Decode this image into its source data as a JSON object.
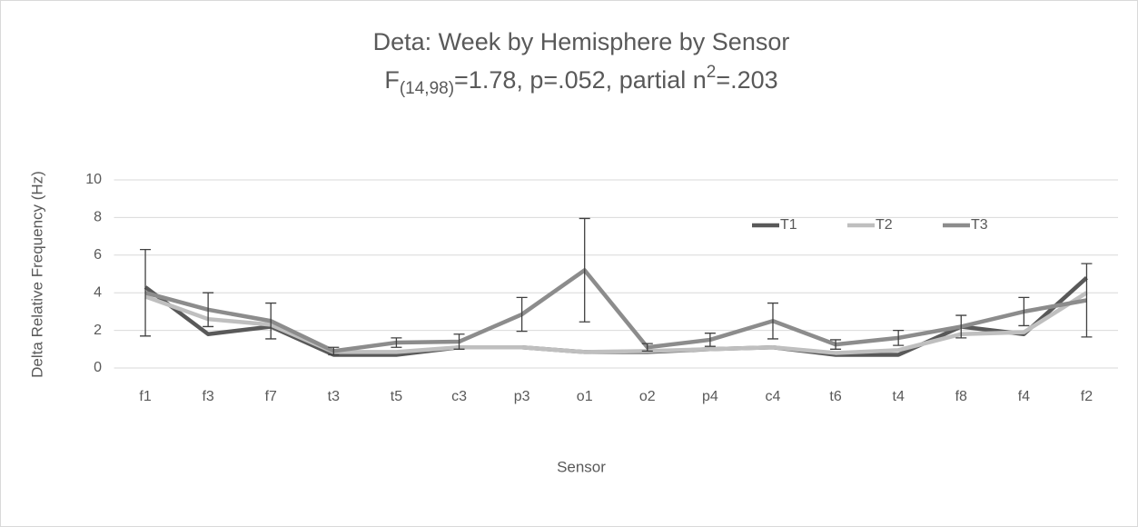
{
  "chart_data": {
    "type": "line",
    "title": "Deta: Week by Hemisphere by Sensor",
    "subtitle": [
      "F",
      "(14,98)",
      "=1.78, p=.052, partial n",
      "2",
      "=.203"
    ],
    "xlabel": "Sensor",
    "ylabel": "Delta Relative Frequency (Hz)",
    "categories": [
      "f1",
      "f3",
      "f7",
      "t3",
      "t5",
      "c3",
      "p3",
      "o1",
      "o2",
      "p4",
      "c4",
      "t6",
      "t4",
      "f8",
      "f4",
      "f2"
    ],
    "series": [
      {
        "name": "T1",
        "color": "#595959",
        "values": [
          4.3,
          1.8,
          2.2,
          0.7,
          0.7,
          1.1,
          1.1,
          0.85,
          0.85,
          1.0,
          1.1,
          0.7,
          0.7,
          2.2,
          1.8,
          4.8
        ]
      },
      {
        "name": "T2",
        "color": "#bfbfbf",
        "values": [
          3.8,
          2.6,
          2.3,
          0.85,
          0.85,
          1.1,
          1.1,
          0.85,
          0.9,
          1.0,
          1.1,
          0.8,
          0.95,
          1.8,
          1.9,
          4.0
        ]
      },
      {
        "name": "T3",
        "color": "#8c8c8c",
        "values": [
          4.0,
          3.1,
          2.5,
          0.9,
          1.35,
          1.4,
          2.85,
          5.2,
          1.1,
          1.5,
          2.5,
          1.25,
          1.6,
          2.2,
          3.0,
          3.6
        ],
        "errors": [
          2.3,
          0.9,
          0.95,
          0.2,
          0.25,
          0.4,
          0.9,
          2.75,
          0.2,
          0.35,
          0.95,
          0.25,
          0.4,
          0.6,
          0.75,
          1.95
        ]
      }
    ],
    "ylim": [
      0,
      10
    ],
    "yticks": [
      0,
      2,
      4,
      6,
      8,
      10
    ],
    "grid": true,
    "legend": "top-right"
  }
}
